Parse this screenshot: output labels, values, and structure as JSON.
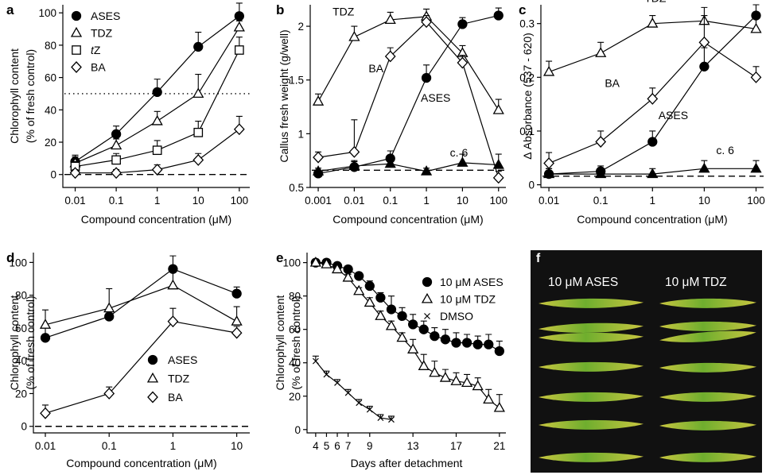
{
  "figure": {
    "photo_panel": {
      "letter": "f",
      "left_label": "10 μM ASES",
      "right_label": "10 μM TDZ",
      "background": "#111111",
      "leaf_green": "#6fae2e",
      "leaf_yellow": "#c9c640"
    },
    "colors": {
      "line": "#000000",
      "background": "#ffffff"
    }
  },
  "chart_data": [
    {
      "id": "a",
      "letter": "a",
      "type": "line",
      "xscale": "log",
      "xlim": [
        0.005,
        180
      ],
      "ylim": [
        -8,
        105
      ],
      "x": [
        0.01,
        0.1,
        1,
        10,
        100
      ],
      "xticks": [
        {
          "v": 0.01,
          "label": "0.01"
        },
        {
          "v": 0.1,
          "label": "0.1"
        },
        {
          "v": 1,
          "label": "1"
        },
        {
          "v": 10,
          "label": "10"
        },
        {
          "v": 100,
          "label": "100"
        }
      ],
      "yticks": [
        {
          "v": 0,
          "label": "0"
        },
        {
          "v": 20,
          "label": "20"
        },
        {
          "v": 40,
          "label": "40"
        },
        {
          "v": 60,
          "label": "60"
        },
        {
          "v": 80,
          "label": "80"
        },
        {
          "v": 100,
          "label": "100"
        }
      ],
      "xlabel": "Compound concentration (μM)",
      "ylabel": [
        "Chlorophyll content",
        "(% of fresh control)"
      ],
      "series": [
        {
          "name": "ASES",
          "marker": "circle",
          "values": [
            8,
            25,
            51,
            79,
            98
          ],
          "errors": [
            4,
            5,
            8,
            9,
            8
          ]
        },
        {
          "name": "TDZ",
          "marker": "triangle",
          "values": [
            7,
            18,
            33,
            50,
            91
          ],
          "errors": [
            4,
            4,
            6,
            12,
            4
          ]
        },
        {
          "name": "tZ",
          "marker": "square",
          "values": [
            5,
            9,
            15,
            26,
            77
          ],
          "errors": [
            3,
            4,
            6,
            7,
            8
          ]
        },
        {
          "name": "BA",
          "marker": "diamond",
          "values": [
            1,
            1,
            3,
            9,
            28
          ],
          "errors": [
            2,
            2,
            3,
            4,
            8
          ]
        }
      ],
      "reference_lines": [
        {
          "y": 50,
          "style": "dotted"
        },
        {
          "y": 0,
          "style": "dashed"
        }
      ],
      "legend": {
        "position": "top-left",
        "entries": [
          {
            "text": "ASES",
            "marker": "circle"
          },
          {
            "text": "TDZ",
            "marker": "triangle"
          },
          {
            "text_italic": "t",
            "text": "Z",
            "marker": "square"
          },
          {
            "text": "BA",
            "marker": "diamond"
          }
        ]
      }
    },
    {
      "id": "b",
      "letter": "b",
      "type": "line",
      "xscale": "log",
      "xlim": [
        0.0006,
        160
      ],
      "ylim": [
        0.5,
        2.2
      ],
      "x": [
        0.001,
        0.01,
        0.1,
        1,
        10,
        100
      ],
      "xticks": [
        {
          "v": 0.001,
          "label": "0.001"
        },
        {
          "v": 0.01,
          "label": "0.01"
        },
        {
          "v": 0.1,
          "label": "0.1"
        },
        {
          "v": 1,
          "label": "1"
        },
        {
          "v": 10,
          "label": "10"
        },
        {
          "v": 100,
          "label": "100"
        }
      ],
      "yticks": [
        {
          "v": 0.5,
          "label": "0.5"
        },
        {
          "v": 1,
          "label": "1"
        },
        {
          "v": 1.5,
          "label": "1.5"
        },
        {
          "v": 2,
          "label": "2"
        }
      ],
      "xlabel": "Compound concentration (μM)",
      "ylabel": [
        "Callus fresh weight (g/well)"
      ],
      "series": [
        {
          "name": "TDZ",
          "marker": "triangle",
          "values": [
            1.3,
            1.9,
            2.06,
            2.09,
            1.75,
            1.22
          ],
          "errors": [
            0.07,
            0.1,
            0.07,
            0.07,
            0.07,
            0.1
          ]
        },
        {
          "name": "BA",
          "marker": "diamond",
          "values": [
            0.78,
            0.83,
            1.72,
            2.04,
            1.66,
            0.59
          ],
          "errors": [
            0.05,
            0.3,
            0.08,
            0.06,
            0.07,
            0.06
          ]
        },
        {
          "name": "ASES",
          "marker": "circle",
          "values": [
            0.63,
            0.69,
            0.77,
            1.52,
            2.02,
            2.1
          ],
          "errors": [
            0.03,
            0.05,
            0.07,
            0.12,
            0.06,
            0.07
          ]
        },
        {
          "name": "c. 6",
          "marker": "filled-triangle",
          "values": [
            0.65,
            0.7,
            0.72,
            0.65,
            0.73,
            0.71
          ],
          "errors": [
            0.03,
            0.05,
            0.04,
            0.03,
            0.08,
            0.1
          ]
        }
      ],
      "reference_lines": [
        {
          "y": 0.66,
          "style": "dashed"
        }
      ],
      "series_labels": [
        {
          "text": "TDZ",
          "x": 0.0025,
          "y": 2.1
        },
        {
          "text": "BA",
          "x": 0.025,
          "y": 1.57
        },
        {
          "text": "ASES",
          "x": 0.7,
          "y": 1.3
        },
        {
          "text": "c. 6",
          "x": 4.5,
          "y": 0.79
        }
      ]
    },
    {
      "id": "c",
      "letter": "c",
      "type": "line",
      "xscale": "log",
      "xlim": [
        0.007,
        140
      ],
      "ylim": [
        -0.005,
        0.335
      ],
      "x": [
        0.01,
        0.1,
        1,
        10,
        100
      ],
      "xticks": [
        {
          "v": 0.01,
          "label": "0.01"
        },
        {
          "v": 0.1,
          "label": "0.1"
        },
        {
          "v": 1,
          "label": "1"
        },
        {
          "v": 10,
          "label": "10"
        },
        {
          "v": 100,
          "label": "100"
        }
      ],
      "yticks": [
        {
          "v": 0,
          "label": "0"
        },
        {
          "v": 0.1,
          "label": "0.1"
        },
        {
          "v": 0.2,
          "label": "0.2"
        },
        {
          "v": 0.3,
          "label": "0.3"
        }
      ],
      "xlabel": "Compound concentration (μM)",
      "ylabel": [
        "Δ Absorbance (537 - 620)"
      ],
      "series": [
        {
          "name": "TDZ",
          "marker": "triangle",
          "values": [
            0.21,
            0.245,
            0.3,
            0.305,
            0.29
          ],
          "errors": [
            0.02,
            0.02,
            0.015,
            0.025,
            0.03
          ]
        },
        {
          "name": "BA",
          "marker": "diamond",
          "values": [
            0.04,
            0.08,
            0.16,
            0.265,
            0.2
          ],
          "errors": [
            0.02,
            0.02,
            0.02,
            0.05,
            0.02
          ]
        },
        {
          "name": "ASES",
          "marker": "circle",
          "values": [
            0.02,
            0.025,
            0.08,
            0.22,
            0.315
          ],
          "errors": [
            0.01,
            0.01,
            0.02,
            0.035,
            0.02
          ]
        },
        {
          "name": "c. 6",
          "marker": "filled-triangle",
          "values": [
            0.02,
            0.02,
            0.02,
            0.03,
            0.03
          ],
          "errors": [
            0.01,
            0.01,
            0.01,
            0.015,
            0.015
          ]
        }
      ],
      "reference_lines": [
        {
          "y": 0.016,
          "style": "dashed"
        }
      ],
      "series_labels": [
        {
          "text": "TDZ",
          "x": 0.7,
          "y": 0.34
        },
        {
          "text": "BA",
          "x": 0.12,
          "y": 0.182
        },
        {
          "text": "ASES",
          "x": 1.3,
          "y": 0.122
        },
        {
          "text": "c. 6",
          "x": 17,
          "y": 0.057
        }
      ]
    },
    {
      "id": "d",
      "letter": "d",
      "type": "line",
      "xscale": "log",
      "xlim": [
        0.0065,
        16
      ],
      "ylim": [
        -4,
        106
      ],
      "x": [
        0.01,
        0.1,
        1,
        10
      ],
      "xticks": [
        {
          "v": 0.01,
          "label": "0.01"
        },
        {
          "v": 0.1,
          "label": "0.1"
        },
        {
          "v": 1,
          "label": "1"
        },
        {
          "v": 10,
          "label": "10"
        }
      ],
      "yticks": [
        {
          "v": 0,
          "label": "0"
        },
        {
          "v": 20,
          "label": "20"
        },
        {
          "v": 40,
          "label": "40"
        },
        {
          "v": 60,
          "label": "60"
        },
        {
          "v": 80,
          "label": "80"
        },
        {
          "v": 100,
          "label": "100"
        }
      ],
      "xlabel": "Compound concentration (μM)",
      "ylabel": [
        "Chlorophyll content",
        "(% of fresh control)"
      ],
      "series": [
        {
          "name": "ASES",
          "marker": "circle",
          "values": [
            54,
            67,
            96,
            81
          ],
          "errors": [
            6,
            4,
            8,
            4
          ]
        },
        {
          "name": "TDZ",
          "marker": "triangle",
          "values": [
            62,
            72,
            86,
            64
          ],
          "errors": [
            9,
            12,
            8,
            9
          ]
        },
        {
          "name": "BA",
          "marker": "diamond",
          "values": [
            8,
            20,
            64,
            57
          ],
          "errors": [
            5,
            4,
            8,
            4
          ]
        }
      ],
      "reference_lines": [
        {
          "y": 0,
          "style": "dashed"
        }
      ],
      "legend": {
        "position": "bottom-right",
        "entries": [
          {
            "text": "ASES",
            "marker": "circle"
          },
          {
            "text": "TDZ",
            "marker": "triangle"
          },
          {
            "text": "BA",
            "marker": "diamond"
          }
        ]
      }
    },
    {
      "id": "e",
      "letter": "e",
      "type": "line",
      "xscale": "linear",
      "xlim": [
        3.2,
        21.6
      ],
      "ylim": [
        -2,
        106
      ],
      "xticks": [
        {
          "v": 4,
          "label": "4"
        },
        {
          "v": 5,
          "label": "5"
        },
        {
          "v": 6,
          "label": "6"
        },
        {
          "v": 7,
          "label": "7"
        },
        {
          "v": 9,
          "label": "9"
        },
        {
          "v": 13,
          "label": "13"
        },
        {
          "v": 17,
          "label": "17"
        },
        {
          "v": 21,
          "label": "21"
        }
      ],
      "yticks": [
        {
          "v": 0,
          "label": "0"
        },
        {
          "v": 20,
          "label": "20"
        },
        {
          "v": 40,
          "label": "40"
        },
        {
          "v": 60,
          "label": "60"
        },
        {
          "v": 80,
          "label": "80"
        },
        {
          "v": 100,
          "label": "100"
        }
      ],
      "xlabel": "Days after detachment",
      "ylabel": [
        "Chlorophyll content",
        "(% of fresh control)"
      ],
      "series": [
        {
          "name": "10 μM ASES",
          "marker": "circle",
          "x": [
            4,
            5,
            6,
            7,
            8,
            9,
            10,
            11,
            12,
            13,
            14,
            15,
            16,
            17,
            18,
            19,
            20,
            21
          ],
          "values": [
            100,
            100,
            98,
            96,
            92,
            86,
            79,
            72,
            68,
            63,
            60,
            56,
            54,
            52,
            52,
            51,
            51,
            47
          ],
          "errors": [
            2,
            2,
            2,
            2,
            2,
            3,
            3,
            8,
            5,
            6,
            5,
            5,
            6,
            6,
            5,
            5,
            6,
            6
          ]
        },
        {
          "name": "10 μM TDZ",
          "marker": "triangle",
          "x": [
            4,
            5,
            6,
            7,
            8,
            9,
            10,
            11,
            12,
            13,
            14,
            15,
            16,
            17,
            18,
            19,
            20,
            21
          ],
          "values": [
            100,
            99,
            96,
            91,
            83,
            76,
            68,
            62,
            55,
            48,
            38,
            34,
            31,
            29,
            28,
            26,
            18,
            13
          ],
          "errors": [
            2,
            2,
            2,
            2,
            2,
            3,
            3,
            3,
            3,
            6,
            7,
            7,
            5,
            5,
            5,
            5,
            6,
            8
          ]
        },
        {
          "name": "DMSO",
          "marker": "x",
          "x": [
            4,
            5,
            6,
            7,
            8,
            9,
            10,
            11
          ],
          "values": [
            41,
            33,
            28,
            22,
            16,
            12,
            7,
            6
          ],
          "errors": [
            3,
            2,
            2,
            2,
            2,
            2,
            2,
            2
          ]
        }
      ],
      "legend": {
        "position": "top-right",
        "entries": [
          {
            "text": "10 μM ASES",
            "marker": "circle"
          },
          {
            "text": "10 μM TDZ",
            "marker": "triangle"
          },
          {
            "text": "DMSO",
            "marker": "x"
          }
        ]
      }
    }
  ]
}
